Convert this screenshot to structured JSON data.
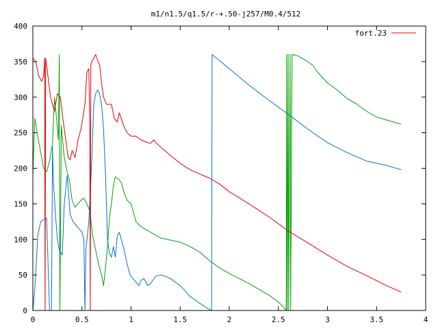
{
  "chart_data": {
    "type": "line",
    "title": "m1/n1.5/q1.5/r-+.50-j257/M0.4/512",
    "xlabel": "",
    "ylabel": "",
    "xlim": [
      0,
      4
    ],
    "ylim": [
      0,
      400
    ],
    "x_ticks": [
      "0",
      "0.5",
      "1",
      "1.5",
      "2",
      "2.5",
      "3",
      "3.5",
      "4"
    ],
    "y_ticks": [
      "0",
      "50",
      "100",
      "150",
      "200",
      "250",
      "300",
      "350",
      "400"
    ],
    "grid": false,
    "legend_position": "top-right",
    "series": [
      {
        "name": "fort.23",
        "color": "#e00000",
        "points": [
          [
            0.0,
            355
          ],
          [
            0.03,
            350
          ],
          [
            0.06,
            330
          ],
          [
            0.09,
            322
          ],
          [
            0.11,
            330
          ],
          [
            0.12,
            355
          ],
          [
            0.125,
            0
          ],
          [
            0.13,
            355
          ],
          [
            0.14,
            345
          ],
          [
            0.18,
            300
          ],
          [
            0.2,
            290
          ],
          [
            0.22,
            280
          ],
          [
            0.25,
            305
          ],
          [
            0.28,
            300
          ],
          [
            0.31,
            265
          ],
          [
            0.34,
            235
          ],
          [
            0.36,
            215
          ],
          [
            0.38,
            212
          ],
          [
            0.4,
            225
          ],
          [
            0.43,
            215
          ],
          [
            0.46,
            240
          ],
          [
            0.49,
            255
          ],
          [
            0.51,
            272
          ],
          [
            0.53,
            290
          ],
          [
            0.55,
            335
          ],
          [
            0.57,
            340
          ],
          [
            0.58,
            260
          ],
          [
            0.585,
            0
          ],
          [
            0.59,
            345
          ],
          [
            0.6,
            350
          ],
          [
            0.62,
            355
          ],
          [
            0.64,
            360
          ],
          [
            0.65,
            355
          ],
          [
            0.68,
            345
          ],
          [
            0.7,
            320
          ],
          [
            0.72,
            300
          ],
          [
            0.75,
            290
          ],
          [
            0.8,
            290
          ],
          [
            0.83,
            270
          ],
          [
            0.86,
            265
          ],
          [
            0.88,
            278
          ],
          [
            0.9,
            270
          ],
          [
            0.93,
            258
          ],
          [
            0.96,
            250
          ],
          [
            1.0,
            245
          ],
          [
            1.05,
            245
          ],
          [
            1.1,
            240
          ],
          [
            1.15,
            237
          ],
          [
            1.2,
            235
          ],
          [
            1.23,
            240
          ],
          [
            1.26,
            235
          ],
          [
            1.3,
            230
          ],
          [
            1.4,
            218
          ],
          [
            1.5,
            207
          ],
          [
            1.6,
            198
          ],
          [
            1.7,
            192
          ],
          [
            1.8,
            186
          ],
          [
            1.9,
            178
          ],
          [
            2.0,
            167
          ],
          [
            2.2,
            150
          ],
          [
            2.4,
            132
          ],
          [
            2.6,
            112
          ],
          [
            2.8,
            95
          ],
          [
            3.0,
            78
          ],
          [
            3.2,
            62
          ],
          [
            3.4,
            49
          ],
          [
            3.6,
            35
          ],
          [
            3.75,
            26
          ]
        ]
      },
      {
        "name": "",
        "color": "#00a000",
        "points": [
          [
            0.0,
            190
          ],
          [
            0.02,
            270
          ],
          [
            0.05,
            245
          ],
          [
            0.08,
            222
          ],
          [
            0.11,
            200
          ],
          [
            0.14,
            195
          ],
          [
            0.17,
            210
          ],
          [
            0.2,
            235
          ],
          [
            0.22,
            300
          ],
          [
            0.24,
            272
          ],
          [
            0.26,
            240
          ],
          [
            0.27,
            360
          ],
          [
            0.275,
            0
          ],
          [
            0.29,
            260
          ],
          [
            0.32,
            215
          ],
          [
            0.35,
            195
          ],
          [
            0.37,
            185
          ],
          [
            0.4,
            155
          ],
          [
            0.43,
            145
          ],
          [
            0.46,
            150
          ],
          [
            0.49,
            155
          ],
          [
            0.52,
            158
          ],
          [
            0.55,
            150
          ],
          [
            0.58,
            140
          ],
          [
            0.61,
            105
          ],
          [
            0.64,
            85
          ],
          [
            0.67,
            65
          ],
          [
            0.7,
            50
          ],
          [
            0.72,
            35
          ],
          [
            0.74,
            60
          ],
          [
            0.76,
            90
          ],
          [
            0.78,
            130
          ],
          [
            0.8,
            150
          ],
          [
            0.82,
            175
          ],
          [
            0.84,
            188
          ],
          [
            0.87,
            185
          ],
          [
            0.9,
            180
          ],
          [
            0.93,
            165
          ],
          [
            0.96,
            155
          ],
          [
            1.0,
            150
          ],
          [
            1.02,
            140
          ],
          [
            1.05,
            125
          ],
          [
            1.1,
            118
          ],
          [
            1.2,
            110
          ],
          [
            1.3,
            102
          ],
          [
            1.4,
            99
          ],
          [
            1.5,
            96
          ],
          [
            1.6,
            90
          ],
          [
            1.7,
            82
          ],
          [
            1.8,
            70
          ],
          [
            1.9,
            60
          ],
          [
            2.0,
            52
          ],
          [
            2.1,
            45
          ],
          [
            2.2,
            38
          ],
          [
            2.3,
            30
          ],
          [
            2.4,
            22
          ],
          [
            2.5,
            12
          ],
          [
            2.55,
            5
          ],
          [
            2.58,
            0
          ],
          [
            2.585,
            360
          ],
          [
            2.59,
            0
          ],
          [
            2.6,
            360
          ],
          [
            2.605,
            0
          ],
          [
            2.62,
            360
          ],
          [
            2.625,
            0
          ],
          [
            2.64,
            360
          ],
          [
            2.7,
            358
          ],
          [
            2.8,
            350
          ],
          [
            2.85,
            345
          ],
          [
            2.9,
            335
          ],
          [
            3.0,
            320
          ],
          [
            3.1,
            310
          ],
          [
            3.2,
            298
          ],
          [
            3.3,
            290
          ],
          [
            3.4,
            280
          ],
          [
            3.5,
            272
          ],
          [
            3.6,
            268
          ],
          [
            3.7,
            264
          ],
          [
            3.75,
            262
          ]
        ]
      },
      {
        "name": "",
        "color": "#0070d0",
        "points": [
          [
            0.0,
            0
          ],
          [
            0.02,
            30
          ],
          [
            0.05,
            105
          ],
          [
            0.08,
            125
          ],
          [
            0.11,
            128
          ],
          [
            0.14,
            130
          ],
          [
            0.17,
            0
          ],
          [
            0.19,
            0
          ],
          [
            0.2,
            230
          ],
          [
            0.21,
            180
          ],
          [
            0.23,
            135
          ],
          [
            0.25,
            100
          ],
          [
            0.27,
            85
          ],
          [
            0.3,
            78
          ],
          [
            0.32,
            150
          ],
          [
            0.35,
            190
          ],
          [
            0.38,
            135
          ],
          [
            0.41,
            125
          ],
          [
            0.44,
            120
          ],
          [
            0.47,
            115
          ],
          [
            0.5,
            110
          ],
          [
            0.52,
            100
          ],
          [
            0.53,
            0
          ],
          [
            0.54,
            85
          ],
          [
            0.57,
            125
          ],
          [
            0.6,
            210
          ],
          [
            0.62,
            290
          ],
          [
            0.64,
            305
          ],
          [
            0.66,
            310
          ],
          [
            0.68,
            305
          ],
          [
            0.7,
            290
          ],
          [
            0.72,
            255
          ],
          [
            0.74,
            190
          ],
          [
            0.76,
            100
          ],
          [
            0.78,
            80
          ],
          [
            0.8,
            75
          ],
          [
            0.82,
            90
          ],
          [
            0.84,
            75
          ],
          [
            0.86,
            105
          ],
          [
            0.88,
            110
          ],
          [
            0.9,
            100
          ],
          [
            0.93,
            85
          ],
          [
            0.96,
            65
          ],
          [
            0.99,
            50
          ],
          [
            1.02,
            45
          ],
          [
            1.05,
            40
          ],
          [
            1.08,
            35
          ],
          [
            1.1,
            42
          ],
          [
            1.13,
            45
          ],
          [
            1.17,
            35
          ],
          [
            1.2,
            38
          ],
          [
            1.25,
            48
          ],
          [
            1.3,
            50
          ],
          [
            1.35,
            48
          ],
          [
            1.4,
            45
          ],
          [
            1.5,
            35
          ],
          [
            1.6,
            20
          ],
          [
            1.7,
            10
          ],
          [
            1.78,
            3
          ],
          [
            1.82,
            0
          ],
          [
            1.825,
            360
          ],
          [
            2.0,
            340
          ],
          [
            2.2,
            317
          ],
          [
            2.4,
            296
          ],
          [
            2.6,
            276
          ],
          [
            2.8,
            255
          ],
          [
            3.0,
            236
          ],
          [
            3.2,
            222
          ],
          [
            3.4,
            210
          ],
          [
            3.6,
            204
          ],
          [
            3.75,
            198
          ]
        ]
      }
    ]
  }
}
